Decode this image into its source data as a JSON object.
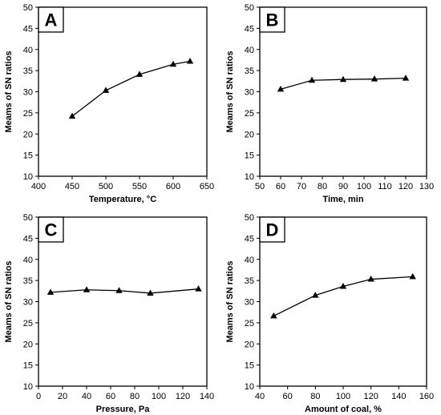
{
  "chart_data": [
    {
      "type": "line",
      "panel_label": "A",
      "xlabel": "Temperature, °C",
      "ylabel": "Meams of SN ratios",
      "xlim": [
        400,
        650
      ],
      "ylim": [
        10,
        50
      ],
      "xticks": [
        400,
        450,
        500,
        550,
        600,
        650
      ],
      "yticks": [
        10,
        15,
        20,
        25,
        30,
        35,
        40,
        45,
        50
      ],
      "marker": "triangle",
      "grid": false,
      "x": [
        450,
        500,
        550,
        600,
        625
      ],
      "values": [
        24.2,
        30.3,
        34.1,
        36.5,
        37.2
      ]
    },
    {
      "type": "line",
      "panel_label": "B",
      "xlabel": "Time, min",
      "ylabel": "Meams of SN ratios",
      "xlim": [
        50,
        130
      ],
      "ylim": [
        10,
        50
      ],
      "xticks": [
        50,
        60,
        70,
        80,
        90,
        100,
        110,
        120,
        130
      ],
      "yticks": [
        10,
        15,
        20,
        25,
        30,
        35,
        40,
        45,
        50
      ],
      "marker": "triangle",
      "grid": false,
      "x": [
        60,
        75,
        90,
        105,
        120
      ],
      "values": [
        30.6,
        32.7,
        32.9,
        33.0,
        33.2
      ]
    },
    {
      "type": "line",
      "panel_label": "C",
      "xlabel": "Pressure, Pa",
      "ylabel": "Meams of SN ratios",
      "xlim": [
        0,
        140
      ],
      "ylim": [
        10,
        50
      ],
      "xticks": [
        0,
        20,
        40,
        60,
        80,
        100,
        120,
        140
      ],
      "yticks": [
        10,
        15,
        20,
        25,
        30,
        35,
        40,
        45,
        50
      ],
      "marker": "triangle",
      "grid": false,
      "x": [
        10,
        40,
        67,
        93,
        133
      ],
      "values": [
        32.2,
        32.8,
        32.6,
        32.0,
        33.0
      ]
    },
    {
      "type": "line",
      "panel_label": "D",
      "xlabel": "Amount of coal, %",
      "ylabel": "Meams of SN ratios",
      "xlim": [
        40,
        160
      ],
      "ylim": [
        10,
        50
      ],
      "xticks": [
        40,
        60,
        80,
        100,
        120,
        140,
        160
      ],
      "yticks": [
        10,
        15,
        20,
        25,
        30,
        35,
        40,
        45,
        50
      ],
      "marker": "triangle",
      "grid": false,
      "x": [
        50,
        80,
        100,
        120,
        150
      ],
      "values": [
        26.6,
        31.5,
        33.6,
        35.3,
        35.9
      ]
    }
  ]
}
